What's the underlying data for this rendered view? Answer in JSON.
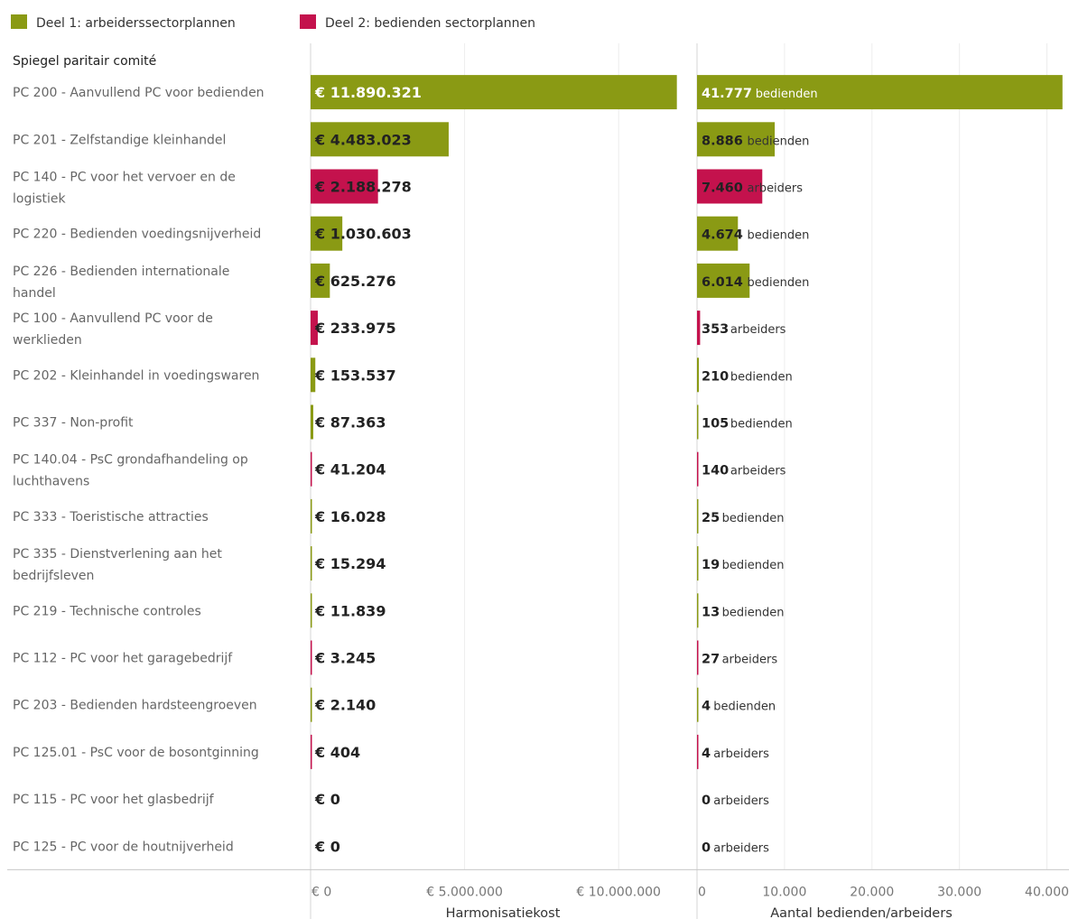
{
  "legend": [
    {
      "label": "Deel 1: arbeiderssectorplannen",
      "color": "#8a9a14"
    },
    {
      "label": "Deel 2: bedienden sectorplannen",
      "color": "#c4124d"
    }
  ],
  "row_header": "Spiegel paritair comité",
  "chart_data": {
    "type": "bar",
    "orientation": "horizontal",
    "categories": [
      [
        "PC 200 - Aanvullend PC voor bedienden"
      ],
      [
        "PC 201 - Zelfstandige kleinhandel"
      ],
      [
        "PC 140 - PC voor het vervoer en de",
        "logistiek"
      ],
      [
        "PC 220 - Bedienden voedingsnijverheid"
      ],
      [
        "PC 226 - Bedienden internationale",
        "handel"
      ],
      [
        "PC 100 - Aanvullend PC voor de",
        "werklieden"
      ],
      [
        "PC 202 - Kleinhandel in voedingswaren"
      ],
      [
        "PC 337 - Non-profit"
      ],
      [
        "PC 140.04 - PsC grondafhandeling op",
        "luchthavens"
      ],
      [
        "PC 333 - Toeristische attracties"
      ],
      [
        "PC 335 - Dienstverlening aan het",
        "bedrijfsleven"
      ],
      [
        "PC 219 - Technische controles"
      ],
      [
        "PC 112 - PC voor het garagebedrijf"
      ],
      [
        "PC 203 - Bedienden hardsteengroeven"
      ],
      [
        "PC 125.01 - PsC voor de bosontginning"
      ],
      [
        "PC 115 - PC voor het glasbedrijf"
      ],
      [
        "PC 125 - PC voor de houtnijverheid"
      ]
    ],
    "deel": [
      1,
      1,
      2,
      1,
      1,
      2,
      1,
      1,
      2,
      1,
      1,
      1,
      2,
      1,
      2,
      2,
      2
    ],
    "panels": [
      {
        "xlabel": "Harmonisatiekost",
        "xlim": [
          0,
          11900000
        ],
        "ticks": [
          0,
          5000000,
          10000000
        ],
        "tick_labels": [
          "€ 0",
          "€ 5.000.000",
          "€ 10.000.000"
        ],
        "values": [
          11890321,
          4483023,
          2188278,
          1030603,
          625276,
          233975,
          153537,
          87363,
          41204,
          16028,
          15294,
          11839,
          3245,
          2140,
          404,
          0,
          0
        ],
        "labels": [
          "€ 11.890.321",
          "€ 4.483.023",
          "€ 2.188.278",
          "€ 1.030.603",
          "€ 625.276",
          "€ 233.975",
          "€ 153.537",
          "€ 87.363",
          "€ 41.204",
          "€ 16.028",
          "€ 15.294",
          "€ 11.839",
          "€ 3.245",
          "€ 2.140",
          "€ 404",
          "€ 0",
          "€ 0"
        ],
        "suffixes": []
      },
      {
        "xlabel": "Aantal bedienden/arbeiders",
        "xlim": [
          0,
          41800
        ],
        "ticks": [
          0,
          10000,
          20000,
          30000,
          40000
        ],
        "tick_labels": [
          "0",
          "10.000",
          "20.000",
          "30.000",
          "40.000"
        ],
        "values": [
          41777,
          8886,
          7460,
          4674,
          6014,
          353,
          210,
          105,
          140,
          25,
          19,
          13,
          27,
          4,
          4,
          0,
          0
        ],
        "labels": [
          "41.777",
          "8.886",
          "7.460",
          "4.674",
          "6.014",
          "353",
          "210",
          "105",
          "140",
          "25",
          "19",
          "13",
          "27",
          "4",
          "4",
          "0",
          "0"
        ],
        "suffixes": [
          "bedienden",
          "bedienden",
          "arbeiders",
          "bedienden",
          "bedienden",
          "arbeiders",
          "bedienden",
          "bedienden",
          "arbeiders",
          "bedienden",
          "bedienden",
          "bedienden",
          "arbeiders",
          "bedienden",
          "arbeiders",
          "arbeiders",
          "arbeiders"
        ]
      }
    ],
    "grid": true,
    "legend_position": "top-left"
  }
}
